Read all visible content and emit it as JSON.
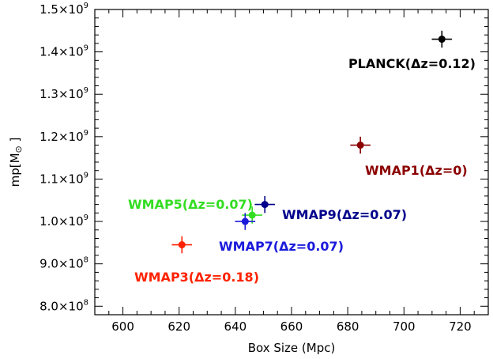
{
  "chart_data": {
    "type": "scatter",
    "title": "",
    "xlabel": "Box Size (Mpc)",
    "ylabel_main": "mp[M",
    "ylabel_sub": "⊙",
    "ylabel_end": " ]",
    "xlim": [
      590,
      730
    ],
    "ylim": [
      780000000,
      1500000000
    ],
    "xticks": [
      600,
      620,
      640,
      660,
      680,
      700,
      720
    ],
    "xtick_labels": [
      "600",
      "620",
      "640",
      "660",
      "680",
      "700",
      "720"
    ],
    "yticks": [
      {
        "value": 800000000,
        "mant": "8.0×10",
        "exp": "8"
      },
      {
        "value": 900000000,
        "mant": "9.0×10",
        "exp": "8"
      },
      {
        "value": 1000000000,
        "mant": "1.0×10",
        "exp": "9"
      },
      {
        "value": 1100000000,
        "mant": "1.1×10",
        "exp": "9"
      },
      {
        "value": 1200000000,
        "mant": "1.2×10",
        "exp": "9"
      },
      {
        "value": 1300000000,
        "mant": "1.3×10",
        "exp": "9"
      },
      {
        "value": 1400000000,
        "mant": "1.4×10",
        "exp": "9"
      },
      {
        "value": 1500000000,
        "mant": "1.5×10",
        "exp": "9"
      }
    ],
    "grid": false,
    "points": [
      {
        "label": "PLANCK(Δz=0.12)",
        "x": 713.5,
        "y": 1430000000,
        "xerr": 2,
        "yerr": 20000000,
        "color": "#000000",
        "label_anchor": "end"
      },
      {
        "label": "WMAP1(Δz=0)",
        "x": 684.5,
        "y": 1180000000,
        "xerr": 2,
        "yerr": 20000000,
        "color": "#8b0000",
        "label_anchor": "start"
      },
      {
        "label": "WMAP9(Δz=0.07)",
        "x": 650.5,
        "y": 1040000000,
        "xerr": 2,
        "yerr": 20000000,
        "color": "#00008b",
        "label_anchor": "start"
      },
      {
        "label": "WMAP5(Δz=0.07)",
        "x": 646,
        "y": 1015000000,
        "xerr": 2,
        "yerr": 20000000,
        "color": "#33dd22",
        "label_anchor": "end"
      },
      {
        "label": "WMAP7(Δz=0.07)",
        "x": 643.5,
        "y": 1000000000,
        "xerr": 2,
        "yerr": 20000000,
        "color": "#1a1adc",
        "label_anchor": "middle"
      },
      {
        "label": "WMAP3(Δz=0.18)",
        "x": 621,
        "y": 945000000,
        "xerr": 2,
        "yerr": 20000000,
        "color": "#ff2200",
        "label_anchor": "middle"
      }
    ]
  }
}
